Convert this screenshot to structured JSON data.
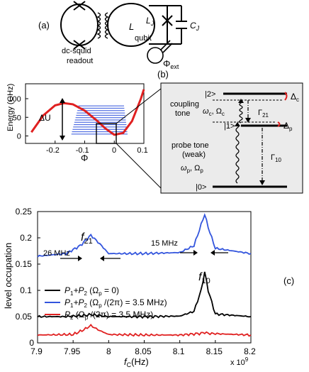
{
  "panel_a": {
    "tag": "(a)",
    "readout_label_1": "dc-squid",
    "readout_label_2": "readout",
    "qubit_label": "qubit",
    "L_label": "L",
    "LJ_label": "L",
    "LJ_sub": "J",
    "CJ_label": "C",
    "CJ_sub": "J",
    "phi_label": "Φ",
    "phi_sub": "ext"
  },
  "panel_b": {
    "tag": "(b)",
    "level_2": "|2>",
    "level_1": "|1>",
    "level_0": "|0>",
    "delta_c": "Δ",
    "delta_c_sub": "c",
    "delta_p": "Δ",
    "delta_p_sub": "p",
    "coupling_1": "coupling",
    "coupling_2": "tone",
    "omega_c": "ω",
    "omega_c_sub": "c",
    "Omega_c": ", Ω",
    "Omega_c_sub": "c",
    "gamma21": "Γ",
    "gamma21_sub": "21",
    "probe_1": "probe tone",
    "probe_2": "(weak)",
    "omega_p": "ω",
    "omega_p_sub": "p",
    "Omega_p": ", Ω",
    "Omega_p_sub": "p",
    "gamma10": "Γ",
    "gamma10_sub": "10",
    "deltaU": "ΔU"
  },
  "panel_c": {
    "tag": "(c)",
    "f21": "f",
    "f21_sub": "21",
    "f10": "f",
    "f10_sub": "10",
    "width_21": "26 MHz",
    "width_10": "15 MHz",
    "x_exponent": "x 10",
    "x_exponent_sup": "9"
  },
  "chart_data": [
    {
      "type": "line",
      "xlabel": "Φ",
      "ylabel": "Energy (GHz)",
      "xlim": [
        -0.3,
        0.1
      ],
      "ylim": [
        -20,
        140
      ],
      "xticks": [
        "-0.2",
        "-0.1",
        "0",
        "0.1"
      ],
      "yticks": [
        "0",
        "50",
        "100"
      ],
      "series": [
        {
          "x": [
            -0.28,
            -0.24,
            -0.2,
            -0.17,
            -0.14,
            -0.1,
            -0.06,
            -0.03,
            0,
            0.03,
            0.06,
            0.09,
            0.1
          ],
          "y": [
            10,
            55,
            82,
            88,
            85,
            68,
            42,
            20,
            3,
            8,
            40,
            100,
            125
          ]
        }
      ],
      "levels_count": 13
    },
    {
      "type": "line",
      "xlabel": "f",
      "xlabel_sub": "C",
      "xlabel_unit": "(Hz)",
      "ylabel": "level occupation",
      "xlim": [
        7.9,
        8.2
      ],
      "ylim": [
        0,
        0.25
      ],
      "xticks": [
        "7.9",
        "7.95",
        "8",
        "8.05",
        "8.1",
        "8.15",
        "8.2"
      ],
      "yticks": [
        "0",
        "0.05",
        "0.1",
        "0.15",
        "0.2",
        "0.25"
      ],
      "colors": {
        "black": "#000000",
        "blue": "#3355dd",
        "red": "#e02020"
      },
      "series": [
        {
          "name": "P",
          "x": [
            7.9,
            7.94,
            7.965,
            7.975,
            7.985,
            8.0,
            8.05,
            8.1,
            8.12,
            8.13,
            8.135,
            8.14,
            8.15,
            8.2
          ],
          "y": [
            0.05,
            0.05,
            0.052,
            0.054,
            0.052,
            0.05,
            0.05,
            0.051,
            0.06,
            0.1,
            0.135,
            0.1,
            0.055,
            0.05
          ]
        },
        {
          "name": "P",
          "x": [
            7.9,
            7.94,
            7.96,
            7.975,
            7.99,
            8.0,
            8.05,
            8.1,
            8.12,
            8.13,
            8.135,
            8.14,
            8.15,
            8.2
          ],
          "y": [
            0.165,
            0.17,
            0.185,
            0.205,
            0.185,
            0.17,
            0.17,
            0.172,
            0.185,
            0.225,
            0.245,
            0.22,
            0.18,
            0.17
          ]
        },
        {
          "name": "P",
          "x": [
            7.9,
            7.95,
            7.965,
            7.975,
            7.985,
            8.0,
            8.05,
            8.1,
            8.13,
            8.135,
            8.14,
            8.2
          ],
          "y": [
            0.015,
            0.016,
            0.025,
            0.033,
            0.025,
            0.016,
            0.015,
            0.015,
            0.018,
            0.02,
            0.018,
            0.015
          ]
        }
      ],
      "legend": [
        {
          "main": "P",
          "s1": "1",
          "mid": "+P",
          "s2": "2",
          "tail": "  (Ω",
          "tsub": "p",
          "end": " = 0)"
        },
        {
          "main": "P",
          "s1": "1",
          "mid": "+P",
          "s2": "2",
          "tail": "  (Ω",
          "tsub": "p",
          "end": " /(2π) = 3.5 MHz)"
        },
        {
          "main": "P",
          "s1": "2",
          "mid": "",
          "s2": "",
          "tail": "  (Ω",
          "tsub": "p",
          "end": " /(2π) = 3.5 MHz)"
        }
      ]
    }
  ]
}
